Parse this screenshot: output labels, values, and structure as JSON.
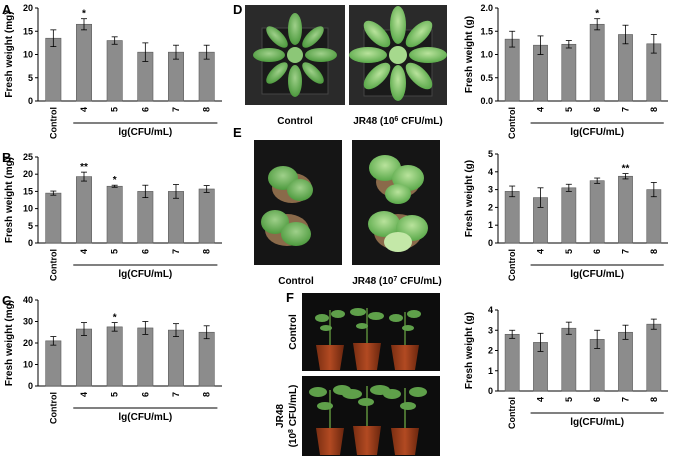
{
  "panels": {
    "A": "A",
    "B": "B",
    "C": "C",
    "D": "D",
    "E": "E",
    "F": "F"
  },
  "photos": {
    "D": {
      "left_caption": "Control",
      "right_caption_main": "JR48 (10",
      "right_caption_exp": "6",
      "right_caption_unit": " CFU/mL)"
    },
    "E": {
      "left_caption": "Control",
      "right_caption_main": "JR48 (10",
      "right_caption_exp": "7",
      "right_caption_unit": " CFU/mL)"
    },
    "F": {
      "top_label": "Control",
      "bottom_label_line1": "JR48",
      "bottom_label_line2_main": "(10",
      "bottom_label_line2_exp": "8",
      "bottom_label_line2_unit": " CFU/mL)"
    }
  },
  "chart_data": [
    {
      "id": "A",
      "type": "bar",
      "categories": [
        "Control",
        "4",
        "5",
        "6",
        "7",
        "8"
      ],
      "values": [
        13.5,
        16.5,
        13.0,
        10.5,
        10.5,
        10.5
      ],
      "errors": [
        1.8,
        1.2,
        0.8,
        2.0,
        1.5,
        1.5
      ],
      "sig": [
        "",
        "*",
        "",
        "",
        "",
        ""
      ],
      "ylabel": "Fresh weight (mg)",
      "xlabel": "lg(CFU/mL)",
      "ylim": [
        0,
        20
      ],
      "yticks": [
        0,
        5,
        10,
        15,
        20
      ]
    },
    {
      "id": "B",
      "type": "bar",
      "categories": [
        "Control",
        "4",
        "5",
        "6",
        "7",
        "8"
      ],
      "values": [
        14.5,
        19.3,
        16.5,
        15.0,
        15.0,
        15.7
      ],
      "errors": [
        0.6,
        1.3,
        0.3,
        1.8,
        2.0,
        1.0
      ],
      "sig": [
        "",
        "**",
        "*",
        "",
        "",
        ""
      ],
      "ylabel": "Fresh weight (mg)",
      "xlabel": "lg(CFU/mL)",
      "ylim": [
        0,
        25
      ],
      "yticks": [
        0,
        5,
        10,
        15,
        20,
        25
      ]
    },
    {
      "id": "C",
      "type": "bar",
      "categories": [
        "Control",
        "4",
        "5",
        "6",
        "7",
        "8"
      ],
      "values": [
        21.0,
        26.5,
        27.5,
        27.0,
        26.0,
        25.0
      ],
      "errors": [
        2.0,
        3.0,
        2.0,
        3.0,
        3.0,
        3.0
      ],
      "sig": [
        "",
        "",
        "*",
        "",
        "",
        ""
      ],
      "ylabel": "Fresh weight (mg)",
      "xlabel": "lg(CFU/mL)",
      "ylim": [
        0,
        40
      ],
      "yticks": [
        0,
        10,
        20,
        30,
        40
      ]
    },
    {
      "id": "D",
      "type": "bar",
      "categories": [
        "Control",
        "4",
        "5",
        "6",
        "7",
        "8"
      ],
      "values": [
        1.33,
        1.2,
        1.22,
        1.65,
        1.43,
        1.23
      ],
      "errors": [
        0.17,
        0.2,
        0.08,
        0.12,
        0.2,
        0.2
      ],
      "sig": [
        "",
        "",
        "",
        "*",
        "",
        ""
      ],
      "ylabel": "Fresh weight (g)",
      "xlabel": "lg(CFU/mL)",
      "ylim": [
        0,
        2.0
      ],
      "yticks": [
        "0.0",
        "0.5",
        "1.0",
        "1.5",
        "2.0"
      ]
    },
    {
      "id": "E",
      "type": "bar",
      "categories": [
        "Control",
        "4",
        "5",
        "6",
        "7",
        "8"
      ],
      "values": [
        2.9,
        2.55,
        3.1,
        3.5,
        3.75,
        3.0
      ],
      "errors": [
        0.3,
        0.55,
        0.2,
        0.15,
        0.15,
        0.4
      ],
      "sig": [
        "",
        "",
        "",
        "",
        "**",
        ""
      ],
      "ylabel": "Fresh weight (g)",
      "xlabel": "lg(CFU/mL)",
      "ylim": [
        0,
        5
      ],
      "yticks": [
        0,
        1,
        2,
        3,
        4,
        5
      ]
    },
    {
      "id": "F",
      "type": "bar",
      "categories": [
        "Control",
        "4",
        "5",
        "6",
        "7",
        "8"
      ],
      "values": [
        2.8,
        2.4,
        3.1,
        2.55,
        2.9,
        3.3
      ],
      "errors": [
        0.2,
        0.45,
        0.3,
        0.45,
        0.35,
        0.25
      ],
      "sig": [
        "",
        "",
        "",
        "",
        "",
        ""
      ],
      "ylabel": "Fresh weight (g)",
      "xlabel": "lg(CFU/mL)",
      "ylim": [
        0,
        4
      ],
      "yticks": [
        0,
        1,
        2,
        3,
        4
      ]
    }
  ]
}
